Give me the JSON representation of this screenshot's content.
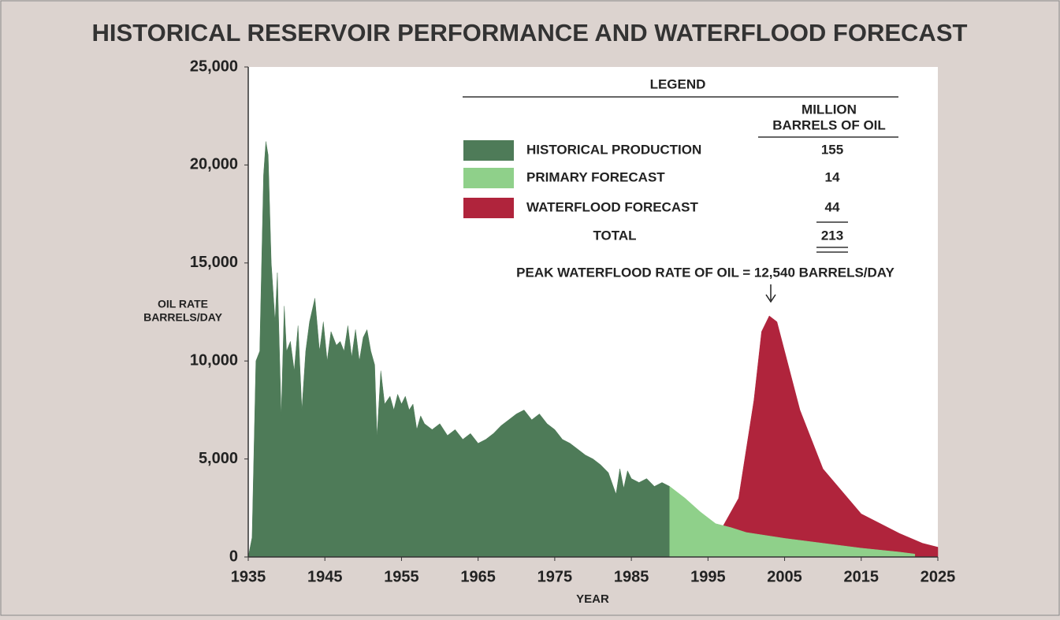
{
  "chart_data": {
    "type": "area",
    "title": "HISTORICAL RESERVOIR PERFORMANCE AND WATERFLOOD FORECAST",
    "y_label": [
      "OIL RATE",
      "BARRELS/DAY"
    ],
    "x_label": "YEAR",
    "xlim": [
      1935,
      2025
    ],
    "xticks": [
      1935,
      1945,
      1955,
      1965,
      1975,
      1985,
      1995,
      2005,
      2015,
      2025
    ],
    "ylim": [
      0,
      25000
    ],
    "yticks": [
      0,
      {
        "value": 5000,
        "label": "5,000"
      },
      {
        "value": 10000,
        "label": "10,000"
      },
      {
        "value": 15000,
        "label": "15,000"
      },
      {
        "value": 20000,
        "label": "20,000"
      },
      {
        "value": 25000,
        "label": "25,000"
      }
    ],
    "legend_title": "LEGEND",
    "legend_header": [
      "MILLION",
      "BARRELS OF OIL"
    ],
    "series": [
      {
        "name": "HISTORICAL PRODUCTION",
        "color": "#4e7b58",
        "volume": 155,
        "x": [
          1935,
          1935.5,
          1936,
          1936.5,
          1937,
          1937.3,
          1937.6,
          1938,
          1938.5,
          1938.8,
          1939.3,
          1939.7,
          1940,
          1940.5,
          1941,
          1941.5,
          1942,
          1942.5,
          1943,
          1943.7,
          1944.3,
          1944.8,
          1945.3,
          1945.8,
          1946.5,
          1947,
          1947.5,
          1948,
          1948.5,
          1949,
          1949.5,
          1950,
          1950.5,
          1951,
          1951.5,
          1951.8,
          1952.3,
          1952.8,
          1953.5,
          1954,
          1954.5,
          1955,
          1955.5,
          1956,
          1956.5,
          1957,
          1957.5,
          1958,
          1959,
          1960,
          1961,
          1962,
          1963,
          1964,
          1965,
          1966,
          1967,
          1968,
          1969,
          1970,
          1971,
          1972,
          1973,
          1974,
          1975,
          1976,
          1977,
          1978,
          1979,
          1980,
          1981,
          1982,
          1983,
          1983.5,
          1984,
          1984.5,
          1985,
          1986,
          1987,
          1988,
          1989,
          1990
        ],
        "values": [
          0,
          1000,
          10000,
          10500,
          19500,
          21200,
          20500,
          15000,
          12000,
          14500,
          7200,
          12800,
          10500,
          11000,
          9500,
          11800,
          7500,
          10500,
          12000,
          13200,
          10500,
          12000,
          10000,
          11500,
          10800,
          11000,
          10500,
          11800,
          10200,
          11600,
          10000,
          11200,
          11600,
          10500,
          9800,
          6100,
          9500,
          7800,
          8200,
          7500,
          8300,
          7800,
          8200,
          7500,
          7800,
          6500,
          7200,
          6800,
          6500,
          6800,
          6200,
          6500,
          6000,
          6300,
          5800,
          6000,
          6300,
          6700,
          7000,
          7300,
          7500,
          7000,
          7300,
          6800,
          6500,
          6000,
          5800,
          5500,
          5200,
          5000,
          4700,
          4300,
          3200,
          4500,
          3500,
          4400,
          4000,
          3800,
          4000,
          3600,
          3800,
          3600
        ]
      },
      {
        "name": "PRIMARY FORECAST",
        "color": "#8fd08a",
        "volume": 14,
        "x": [
          1990,
          1992,
          1994,
          1996,
          1998,
          2000,
          2005,
          2010,
          2015,
          2020,
          2022
        ],
        "values": [
          3600,
          3000,
          2300,
          1700,
          1500,
          1250,
          950,
          700,
          450,
          250,
          150
        ]
      },
      {
        "name": "WATERFLOOD FORECAST",
        "color": "#b0243c",
        "volume": 44,
        "x": [
          1997,
          1999,
          2001,
          2002,
          2003,
          2004,
          2005,
          2007,
          2010,
          2015,
          2020,
          2023,
          2025
        ],
        "values": [
          1600,
          3000,
          8000,
          11500,
          12300,
          12000,
          10500,
          7500,
          4500,
          2200,
          1200,
          700,
          500
        ]
      }
    ],
    "total": {
      "label": "TOTAL",
      "value": 213
    },
    "annotation": "PEAK WATERFLOOD RATE OF OIL = 12,540 BARRELS/DAY"
  }
}
